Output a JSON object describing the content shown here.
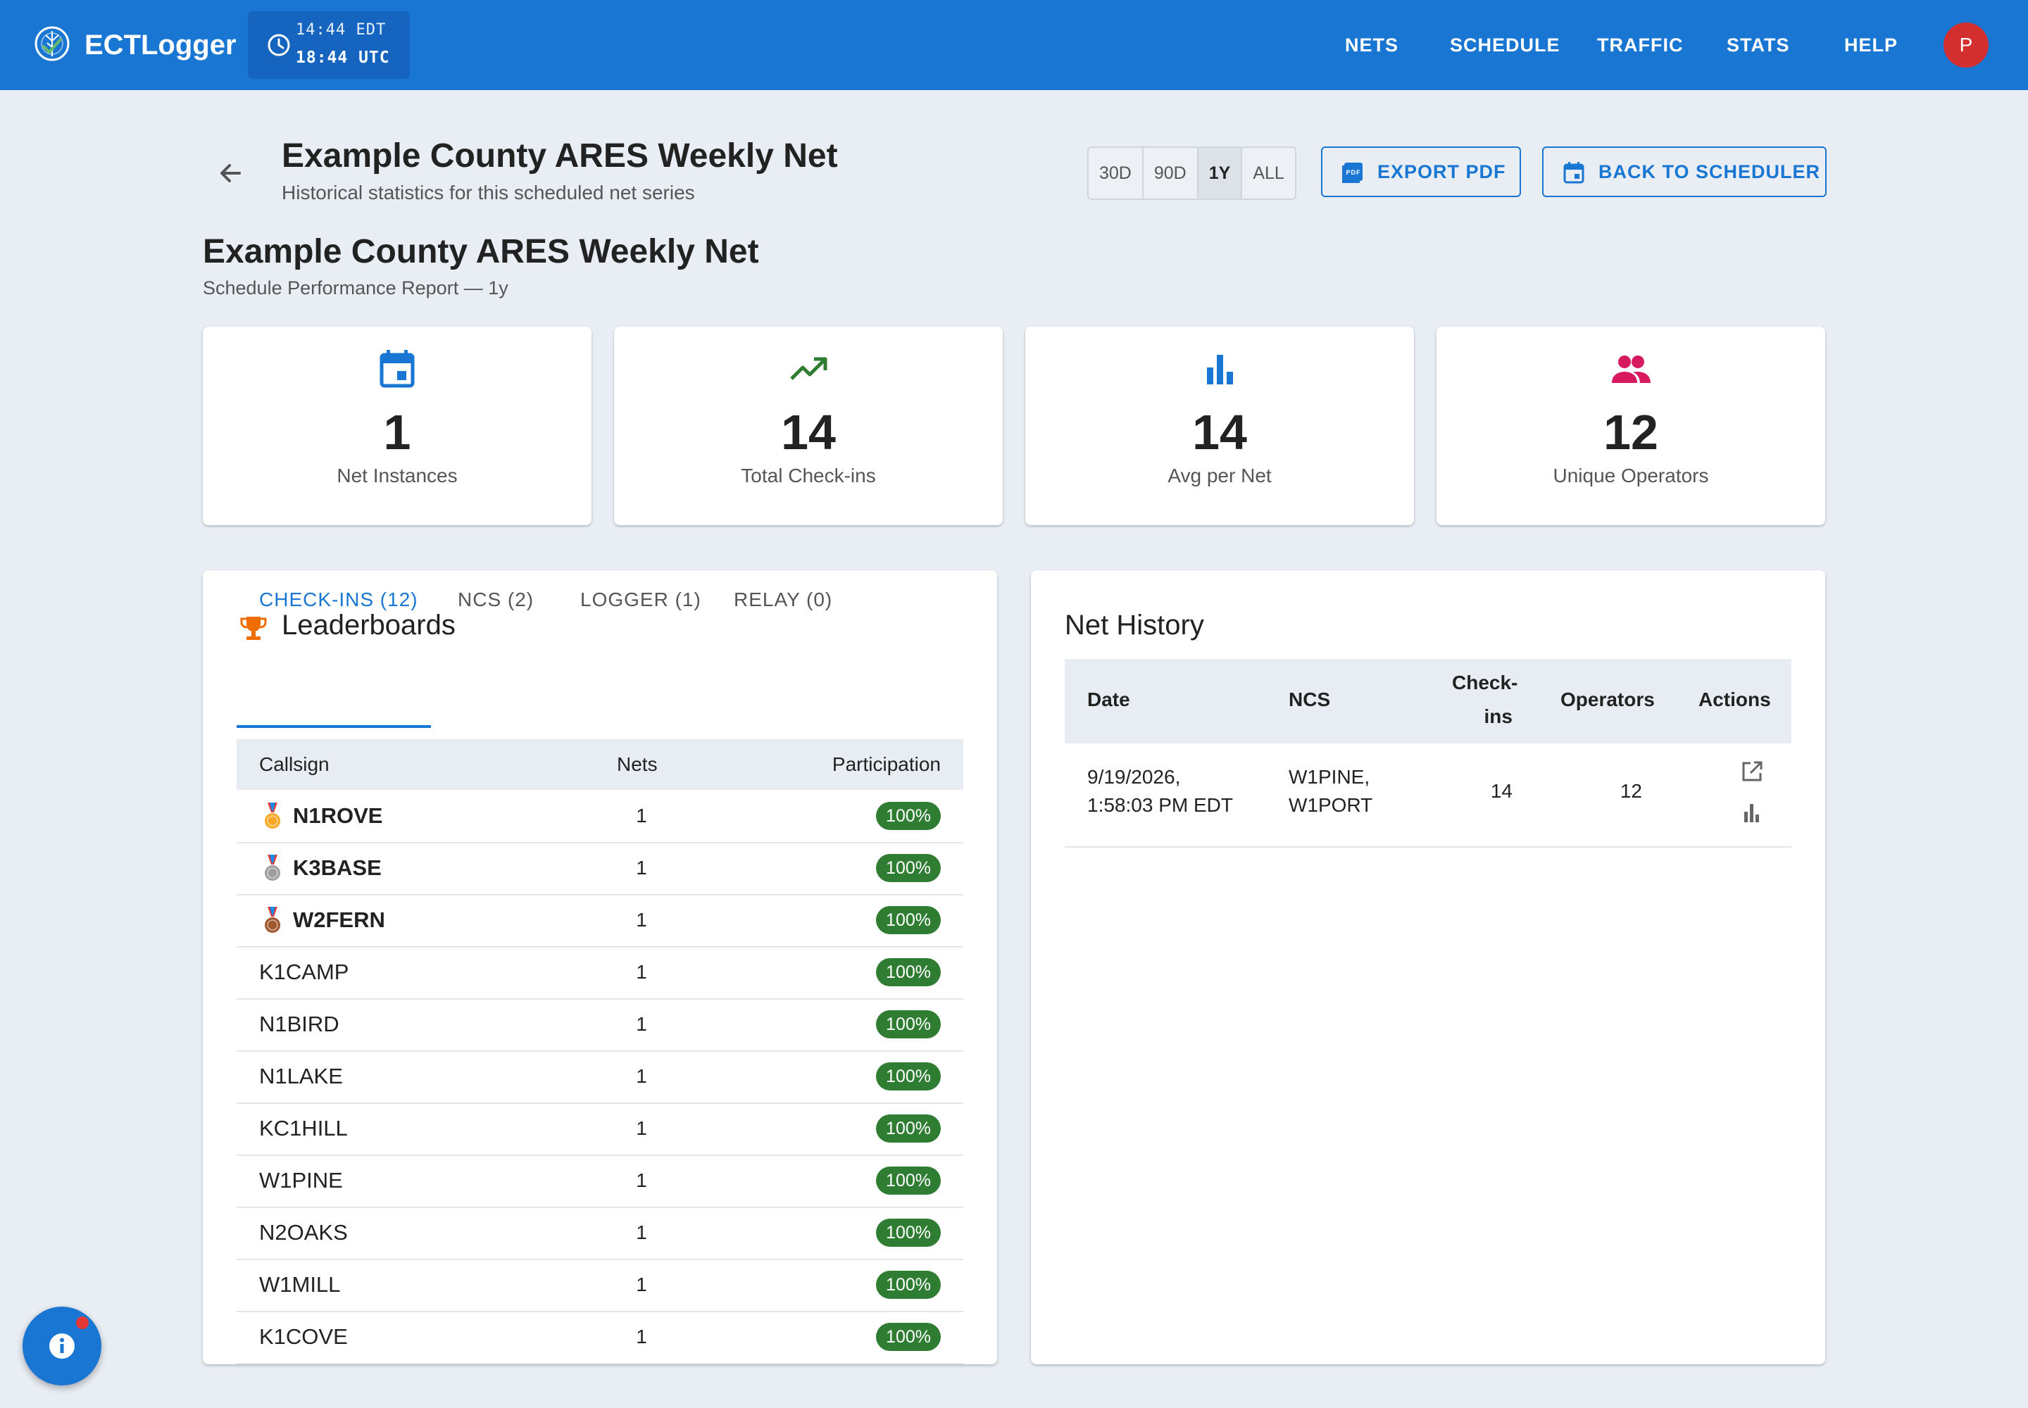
{
  "app": {
    "brand": "ECTLogger",
    "clock_local": "14:44 EDT",
    "clock_utc": "18:44 UTC",
    "nav": [
      "NETS",
      "SCHEDULE",
      "TRAFFIC",
      "STATS",
      "HELP"
    ],
    "avatar_initial": "P",
    "colors": {
      "primary": "#1976d2",
      "avatar": "#d32f2f",
      "success": "#2e7d32",
      "background": "#e9eef4"
    }
  },
  "header": {
    "title": "Example County ARES Weekly Net",
    "subtitle": "Historical statistics for this scheduled net series",
    "range_options": [
      "30D",
      "90D",
      "1Y",
      "ALL"
    ],
    "range_selected": "1Y",
    "export_label": "EXPORT PDF",
    "back_label": "BACK TO SCHEDULER"
  },
  "report": {
    "title": "Example County ARES Weekly Net",
    "subtitle": "Schedule Performance Report — 1y"
  },
  "stats": [
    {
      "icon": "calendar-icon",
      "color": "#1976d2",
      "value": "1",
      "label": "Net Instances"
    },
    {
      "icon": "trending-up-icon",
      "color": "#2e7d32",
      "value": "14",
      "label": "Total Check-ins"
    },
    {
      "icon": "bar-chart-icon",
      "color": "#1976d2",
      "value": "14",
      "label": "Avg per Net"
    },
    {
      "icon": "people-icon",
      "color": "#d81b60",
      "value": "12",
      "label": "Unique Operators"
    }
  ],
  "leaderboards": {
    "title": "Leaderboards",
    "tabs": [
      "CHECK-INS (12)",
      "NCS (2)",
      "LOGGER (1)",
      "RELAY (0)"
    ],
    "active_tab": "CHECK-INS (12)",
    "columns": [
      "Callsign",
      "Nets",
      "Participation"
    ],
    "rows": [
      {
        "callsign": "N1ROVE",
        "nets": "1",
        "participation": "100%",
        "medal": "gold"
      },
      {
        "callsign": "K3BASE",
        "nets": "1",
        "participation": "100%",
        "medal": "silver"
      },
      {
        "callsign": "W2FERN",
        "nets": "1",
        "participation": "100%",
        "medal": "bronze"
      },
      {
        "callsign": "K1CAMP",
        "nets": "1",
        "participation": "100%"
      },
      {
        "callsign": "N1BIRD",
        "nets": "1",
        "participation": "100%"
      },
      {
        "callsign": "N1LAKE",
        "nets": "1",
        "participation": "100%"
      },
      {
        "callsign": "KC1HILL",
        "nets": "1",
        "participation": "100%"
      },
      {
        "callsign": "W1PINE",
        "nets": "1",
        "participation": "100%"
      },
      {
        "callsign": "N2OAKS",
        "nets": "1",
        "participation": "100%"
      },
      {
        "callsign": "W1MILL",
        "nets": "1",
        "participation": "100%"
      },
      {
        "callsign": "K1COVE",
        "nets": "1",
        "participation": "100%"
      }
    ]
  },
  "net_history": {
    "title": "Net History",
    "columns": {
      "date": "Date",
      "ncs": "NCS",
      "checkins_1": "Check-",
      "checkins_2": "ins",
      "operators": "Operators",
      "actions": "Actions"
    },
    "rows": [
      {
        "date_1": "9/19/2026,",
        "date_2": "1:58:03 PM EDT",
        "ncs_1": "W1PINE,",
        "ncs_2": "W1PORT",
        "checkins": "14",
        "operators": "12"
      }
    ]
  }
}
